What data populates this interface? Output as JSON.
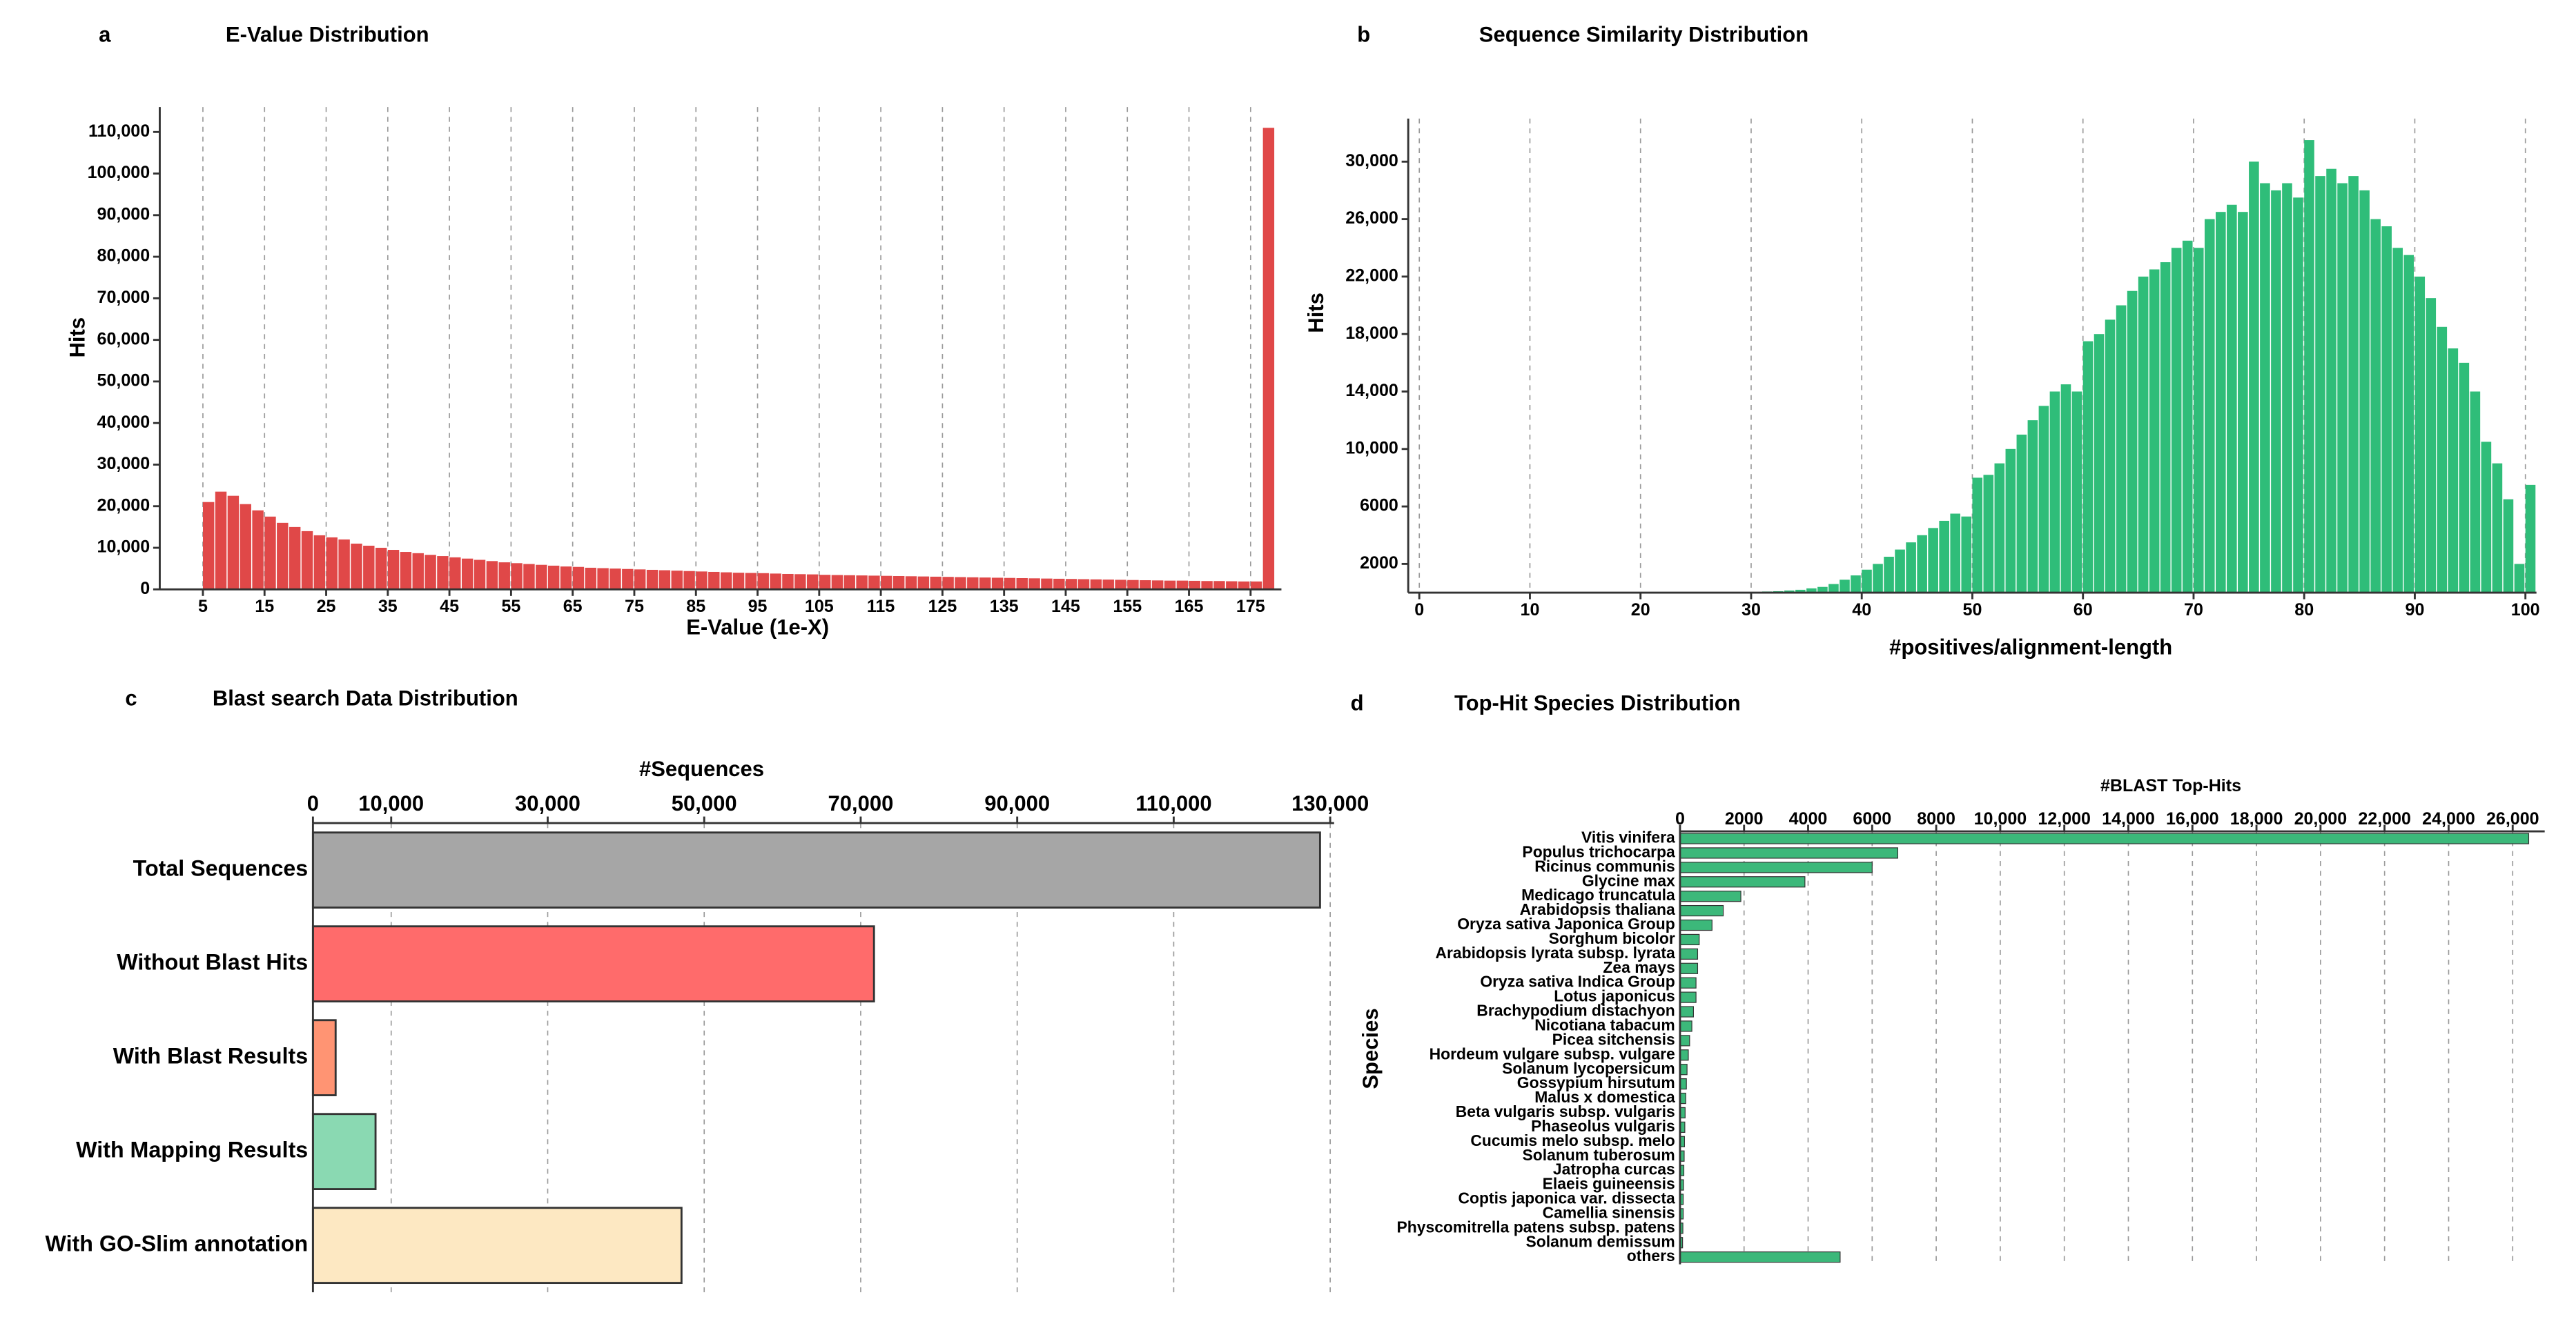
{
  "chart_data": [
    {
      "type": "histogram",
      "panel": "a",
      "title": "E-Value Distribution",
      "x_label": "E-Value (1e-X)",
      "y_label": "Hits",
      "color": "#e04848",
      "grid": true,
      "bins": [
        5,
        7,
        9,
        11,
        13,
        15,
        17,
        19,
        21,
        23,
        25,
        27,
        29,
        31,
        33,
        35,
        37,
        39,
        41,
        43,
        45,
        47,
        49,
        51,
        53,
        55,
        57,
        59,
        61,
        63,
        65,
        67,
        69,
        71,
        73,
        75,
        77,
        79,
        81,
        83,
        85,
        87,
        89,
        91,
        93,
        95,
        97,
        99,
        101,
        103,
        105,
        107,
        109,
        111,
        113,
        115,
        117,
        119,
        121,
        123,
        125,
        127,
        129,
        131,
        133,
        135,
        137,
        139,
        141,
        143,
        145,
        147,
        149,
        151,
        153,
        155,
        157,
        159,
        161,
        163,
        165,
        167,
        169,
        171,
        173,
        175,
        177,
        179
      ],
      "values": [
        21000,
        23500,
        22500,
        20500,
        19000,
        17500,
        16000,
        15000,
        14000,
        13000,
        12500,
        12000,
        11000,
        10500,
        10000,
        9500,
        9000,
        8700,
        8300,
        8000,
        7700,
        7400,
        7100,
        6800,
        6500,
        6300,
        6100,
        5900,
        5700,
        5500,
        5400,
        5200,
        5100,
        5000,
        4900,
        4800,
        4700,
        4600,
        4500,
        4400,
        4300,
        4200,
        4100,
        4000,
        3950,
        3900,
        3800,
        3700,
        3650,
        3600,
        3500,
        3450,
        3400,
        3350,
        3300,
        3250,
        3200,
        3150,
        3100,
        3050,
        3000,
        2950,
        2900,
        2850,
        2800,
        2750,
        2700,
        2650,
        2600,
        2550,
        2500,
        2450,
        2400,
        2350,
        2300,
        2250,
        2200,
        2150,
        2100,
        2100,
        2050,
        2000,
        2000,
        1950,
        1900,
        1900,
        111000
      ],
      "xlim": [
        -2,
        180
      ],
      "xticks": [
        5,
        15,
        25,
        35,
        45,
        55,
        65,
        75,
        85,
        95,
        105,
        115,
        125,
        135,
        145,
        155,
        165,
        175
      ],
      "ylim": [
        0,
        116000
      ],
      "yticks": [
        0,
        {
          "value": 10000,
          "label": "10,000"
        },
        {
          "value": 20000,
          "label": "20,000"
        },
        {
          "value": 30000,
          "label": "30,000"
        },
        {
          "value": 40000,
          "label": "40,000"
        },
        {
          "value": 50000,
          "label": "50,000"
        },
        {
          "value": 60000,
          "label": "60,000"
        },
        {
          "value": 70000,
          "label": "70,000"
        },
        {
          "value": 80000,
          "label": "80,000"
        },
        {
          "value": 90000,
          "label": "90,000"
        },
        {
          "value": 100000,
          "label": "100,000"
        },
        {
          "value": 110000,
          "label": "110,000"
        }
      ]
    },
    {
      "type": "histogram",
      "panel": "b",
      "title": "Sequence Similarity Distribution",
      "x_label": "#positives/alignment-length",
      "y_label": "Hits",
      "color": "#2fbd79",
      "grid": true,
      "bins": [
        30,
        31,
        32,
        33,
        34,
        35,
        36,
        37,
        38,
        39,
        40,
        41,
        42,
        43,
        44,
        45,
        46,
        47,
        48,
        49,
        50,
        51,
        52,
        53,
        54,
        55,
        56,
        57,
        58,
        59,
        60,
        61,
        62,
        63,
        64,
        65,
        66,
        67,
        68,
        69,
        70,
        71,
        72,
        73,
        74,
        75,
        76,
        77,
        78,
        79,
        80,
        81,
        82,
        83,
        84,
        85,
        86,
        87,
        88,
        89,
        90,
        91,
        92,
        93,
        94,
        95,
        96,
        97,
        98,
        99,
        100,
        101
      ],
      "values": [
        50,
        80,
        100,
        150,
        200,
        300,
        400,
        600,
        900,
        1200,
        1600,
        2000,
        2500,
        3000,
        3500,
        4000,
        4500,
        5000,
        5500,
        5300,
        8000,
        8200,
        9000,
        10000,
        11000,
        12000,
        13000,
        14000,
        14500,
        14000,
        17500,
        18000,
        19000,
        20000,
        21000,
        22000,
        22500,
        23000,
        24000,
        24500,
        24000,
        26000,
        26500,
        27000,
        26500,
        30000,
        28500,
        28000,
        28500,
        27500,
        31500,
        29000,
        29500,
        28500,
        29000,
        28000,
        26000,
        25500,
        24000,
        23500,
        22000,
        20500,
        18500,
        17000,
        16000,
        14000,
        10500,
        9000,
        6500,
        2000,
        7500
      ],
      "xlim": [
        -1,
        101
      ],
      "xticks": [
        0,
        10,
        20,
        30,
        40,
        50,
        60,
        70,
        80,
        90,
        100
      ],
      "ylim": [
        0,
        33000
      ],
      "yticks": [
        2000,
        6000,
        {
          "value": 10000,
          "label": "10,000"
        },
        {
          "value": 14000,
          "label": "14,000"
        },
        {
          "value": 18000,
          "label": "18,000"
        },
        {
          "value": 22000,
          "label": "22,000"
        },
        {
          "value": 26000,
          "label": "26,000"
        },
        {
          "value": 30000,
          "label": "30,000"
        }
      ]
    },
    {
      "type": "hbar",
      "panel": "c",
      "title": "Blast search Data Distribution",
      "x_label": "#Sequences",
      "grid": true,
      "categories": [
        "Total Sequences",
        "Without Blast Hits",
        "With Blast Results",
        "With Mapping Results",
        "With GO-Slim annotation"
      ],
      "values": [
        128700,
        71700,
        2900,
        8000,
        47100
      ],
      "colors": [
        "#a6a6a6",
        "#ff6b6b",
        "#ff9473",
        "#8ad9b2",
        "#fde8c2"
      ],
      "xlim": [
        0,
        130500
      ],
      "xticks": [
        0,
        {
          "value": 10000,
          "label": "10,000"
        },
        {
          "value": 30000,
          "label": "30,000"
        },
        {
          "value": 50000,
          "label": "50,000"
        },
        {
          "value": 70000,
          "label": "70,000"
        },
        {
          "value": 90000,
          "label": "90,000"
        },
        {
          "value": 110000,
          "label": "110,000"
        },
        {
          "value": 130000,
          "label": "130,000"
        }
      ]
    },
    {
      "type": "hbar",
      "panel": "d",
      "title": "Top-Hit Species Distribution",
      "x_label": "#BLAST Top-Hits",
      "y_label": "Species",
      "color": "#3cb87a",
      "grid": true,
      "categories": [
        "Vitis vinifera",
        "Populus trichocarpa",
        "Ricinus communis",
        "Glycine max",
        "Medicago truncatula",
        "Arabidopsis thaliana",
        "Oryza sativa Japonica Group",
        "Sorghum bicolor",
        "Arabidopsis lyrata subsp. lyrata",
        "Zea mays",
        "Oryza sativa Indica Group",
        "Lotus japonicus",
        "Brachypodium distachyon",
        "Nicotiana tabacum",
        "Picea sitchensis",
        "Hordeum vulgare subsp. vulgare",
        "Solanum lycopersicum",
        "Gossypium hirsutum",
        "Malus x domestica",
        "Beta vulgaris subsp. vulgaris",
        "Phaseolus vulgaris",
        "Cucumis melo subsp. melo",
        "Solanum tuberosum",
        "Jatropha curcas",
        "Elaeis guineensis",
        "Coptis japonica var. dissecta",
        "Camellia sinensis",
        "Physcomitrella patens subsp. patens",
        "Solanum demissum",
        "others"
      ],
      "values": [
        26500,
        6800,
        6000,
        3900,
        1900,
        1350,
        1000,
        600,
        550,
        550,
        500,
        500,
        420,
        370,
        300,
        260,
        220,
        200,
        180,
        160,
        150,
        140,
        130,
        120,
        110,
        100,
        100,
        90,
        80,
        5000
      ],
      "xlim": [
        0,
        27000
      ],
      "xticks": [
        0,
        2000,
        4000,
        6000,
        8000,
        {
          "value": 10000,
          "label": "10,000"
        },
        {
          "value": 12000,
          "label": "12,000"
        },
        {
          "value": 14000,
          "label": "14,000"
        },
        {
          "value": 16000,
          "label": "16,000"
        },
        {
          "value": 18000,
          "label": "18,000"
        },
        {
          "value": 20000,
          "label": "20,000"
        },
        {
          "value": 22000,
          "label": "22,000"
        },
        {
          "value": 24000,
          "label": "24,000"
        },
        {
          "value": 26000,
          "label": "26,000"
        }
      ]
    }
  ]
}
